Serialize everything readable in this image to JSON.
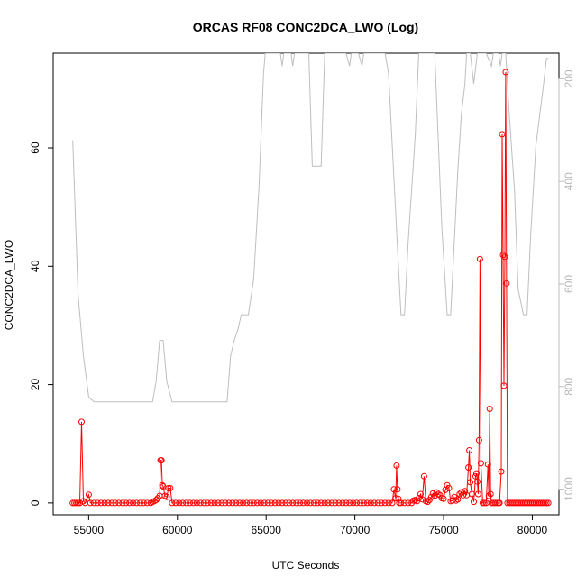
{
  "chart_data": {
    "type": "line",
    "title": "ORCAS RF08 CONC2DCA_LWO (Log)",
    "xlabel": "UTC Seconds",
    "ylabel": "CONC2DCA_LWO",
    "xlim": [
      53000,
      81500
    ],
    "ylim": [
      -2,
      76
    ],
    "x_ticks": [
      55000,
      60000,
      65000,
      70000,
      75000,
      80000
    ],
    "y_ticks": [
      0,
      20,
      40,
      60
    ],
    "right_axis": {
      "ylim": [
        1050,
        150
      ],
      "reversed": true,
      "ticks": [
        200,
        400,
        600,
        800,
        1000
      ],
      "color": "#bebebe"
    },
    "grid": false,
    "series": [
      {
        "color": "#ff0000",
        "marker": "open-circle",
        "points": [
          [
            54100,
            0
          ],
          [
            54200,
            0
          ],
          [
            54300,
            0
          ],
          [
            54400,
            0
          ],
          [
            54500,
            0
          ],
          [
            54600,
            13.7
          ],
          [
            54700,
            0.3
          ],
          [
            54800,
            0
          ],
          [
            55000,
            1.4
          ],
          [
            55100,
            0
          ],
          [
            55300,
            0
          ],
          [
            55500,
            0
          ],
          [
            55700,
            0
          ],
          [
            55900,
            0
          ],
          [
            56100,
            0
          ],
          [
            56300,
            0
          ],
          [
            56500,
            0
          ],
          [
            56700,
            0
          ],
          [
            56900,
            0
          ],
          [
            57100,
            0
          ],
          [
            57300,
            0
          ],
          [
            57500,
            0
          ],
          [
            57700,
            0
          ],
          [
            57900,
            0
          ],
          [
            58100,
            0
          ],
          [
            58300,
            0
          ],
          [
            58500,
            0
          ],
          [
            58600,
            0.2
          ],
          [
            58700,
            0.3
          ],
          [
            58800,
            0.5
          ],
          [
            58900,
            0.8
          ],
          [
            59000,
            1.2
          ],
          [
            59050,
            7.2
          ],
          [
            59100,
            7.2
          ],
          [
            59150,
            3.0
          ],
          [
            59200,
            2.8
          ],
          [
            59300,
            1.2
          ],
          [
            59400,
            1.0
          ],
          [
            59500,
            2.5
          ],
          [
            59600,
            2.5
          ],
          [
            59700,
            0
          ],
          [
            59900,
            0
          ],
          [
            60100,
            0
          ],
          [
            60300,
            0
          ],
          [
            60500,
            0
          ],
          [
            60700,
            0
          ],
          [
            60900,
            0
          ],
          [
            61100,
            0
          ],
          [
            61300,
            0
          ],
          [
            61500,
            0
          ],
          [
            61700,
            0
          ],
          [
            61900,
            0
          ],
          [
            62100,
            0
          ],
          [
            62300,
            0
          ],
          [
            62500,
            0
          ],
          [
            62700,
            0
          ],
          [
            62900,
            0
          ],
          [
            63100,
            0
          ],
          [
            63300,
            0
          ],
          [
            63500,
            0
          ],
          [
            63700,
            0
          ],
          [
            63900,
            0
          ],
          [
            64100,
            0
          ],
          [
            64300,
            0
          ],
          [
            64500,
            0
          ],
          [
            64700,
            0
          ],
          [
            64900,
            0
          ],
          [
            65100,
            0
          ],
          [
            65300,
            0
          ],
          [
            65500,
            0
          ],
          [
            65700,
            0
          ],
          [
            65900,
            0
          ],
          [
            66100,
            0
          ],
          [
            66300,
            0
          ],
          [
            66500,
            0
          ],
          [
            66700,
            0
          ],
          [
            66900,
            0
          ],
          [
            67100,
            0
          ],
          [
            67300,
            0
          ],
          [
            67500,
            0
          ],
          [
            67700,
            0
          ],
          [
            67900,
            0
          ],
          [
            68100,
            0
          ],
          [
            68300,
            0
          ],
          [
            68500,
            0
          ],
          [
            68700,
            0
          ],
          [
            68900,
            0
          ],
          [
            69100,
            0
          ],
          [
            69300,
            0
          ],
          [
            69500,
            0
          ],
          [
            69700,
            0
          ],
          [
            69900,
            0
          ],
          [
            70100,
            0
          ],
          [
            70300,
            0
          ],
          [
            70500,
            0
          ],
          [
            70700,
            0
          ],
          [
            70900,
            0
          ],
          [
            71100,
            0
          ],
          [
            71300,
            0
          ],
          [
            71500,
            0
          ],
          [
            71700,
            0
          ],
          [
            71900,
            0
          ],
          [
            72100,
            0
          ],
          [
            72200,
            2.3
          ],
          [
            72300,
            0.8
          ],
          [
            72350,
            6.3
          ],
          [
            72400,
            2.3
          ],
          [
            72450,
            0.7
          ],
          [
            72500,
            0
          ],
          [
            72600,
            0
          ],
          [
            72800,
            0
          ],
          [
            73000,
            0
          ],
          [
            73200,
            0
          ],
          [
            73300,
            0.4
          ],
          [
            73400,
            0.5
          ],
          [
            73500,
            0.3
          ],
          [
            73600,
            0.8
          ],
          [
            73700,
            1.5
          ],
          [
            73800,
            0.6
          ],
          [
            73900,
            4.5
          ],
          [
            74000,
            0.3
          ],
          [
            74100,
            0.2
          ],
          [
            74200,
            0.5
          ],
          [
            74300,
            1.0
          ],
          [
            74400,
            1.6
          ],
          [
            74500,
            1.2
          ],
          [
            74600,
            1.8
          ],
          [
            74700,
            1.5
          ],
          [
            74800,
            1.3
          ],
          [
            74900,
            0.8
          ],
          [
            75000,
            0.7
          ],
          [
            75100,
            2.2
          ],
          [
            75200,
            3.0
          ],
          [
            75300,
            2.5
          ],
          [
            75400,
            0.3
          ],
          [
            75500,
            0.4
          ],
          [
            75600,
            1.0
          ],
          [
            75700,
            0.4
          ],
          [
            75800,
            0.6
          ],
          [
            75900,
            1.5
          ],
          [
            76000,
            1.8
          ],
          [
            76100,
            1.3
          ],
          [
            76200,
            2.0
          ],
          [
            76300,
            1.3
          ],
          [
            76400,
            6.0
          ],
          [
            76450,
            8.9
          ],
          [
            76500,
            3.5
          ],
          [
            76600,
            1.5
          ],
          [
            76700,
            0.2
          ],
          [
            76800,
            4.5
          ],
          [
            76850,
            5.0
          ],
          [
            76900,
            3.6
          ],
          [
            76950,
            1.5
          ],
          [
            77000,
            10.6
          ],
          [
            77050,
            41.2
          ],
          [
            77100,
            6.7
          ],
          [
            77200,
            0
          ],
          [
            77300,
            0
          ],
          [
            77400,
            0
          ],
          [
            77500,
            6.5
          ],
          [
            77550,
            1.2
          ],
          [
            77600,
            15.9
          ],
          [
            77650,
            1.5
          ],
          [
            77700,
            0
          ],
          [
            77800,
            0
          ],
          [
            77900,
            0
          ],
          [
            78000,
            0
          ],
          [
            78100,
            0
          ],
          [
            78150,
            0
          ],
          [
            78250,
            5.3
          ],
          [
            78300,
            62.3
          ],
          [
            78350,
            41.9
          ],
          [
            78400,
            19.8
          ],
          [
            78450,
            41.6
          ],
          [
            78500,
            72.8
          ],
          [
            78550,
            37.1
          ],
          [
            78600,
            0
          ],
          [
            78700,
            0
          ],
          [
            78800,
            0
          ],
          [
            78900,
            0
          ],
          [
            79000,
            0
          ],
          [
            79100,
            0
          ],
          [
            79200,
            0
          ],
          [
            79300,
            0
          ],
          [
            79400,
            0
          ],
          [
            79500,
            0
          ],
          [
            79600,
            0
          ],
          [
            79700,
            0
          ],
          [
            79800,
            0
          ],
          [
            79900,
            0
          ],
          [
            80000,
            0
          ],
          [
            80100,
            0
          ],
          [
            80200,
            0
          ],
          [
            80300,
            0
          ],
          [
            80400,
            0
          ],
          [
            80500,
            0
          ],
          [
            80600,
            0
          ],
          [
            80700,
            0
          ],
          [
            80800,
            0
          ],
          [
            80900,
            0
          ]
        ]
      },
      {
        "color": "#bebebe",
        "axis": "right",
        "marker": "none",
        "points": [
          [
            54100,
            320
          ],
          [
            54400,
            620
          ],
          [
            54700,
            740
          ],
          [
            55000,
            820
          ],
          [
            55300,
            830
          ],
          [
            56000,
            830
          ],
          [
            57000,
            830
          ],
          [
            58000,
            830
          ],
          [
            58600,
            830
          ],
          [
            58800,
            790
          ],
          [
            59000,
            710
          ],
          [
            59200,
            710
          ],
          [
            59400,
            790
          ],
          [
            59700,
            830
          ],
          [
            60000,
            830
          ],
          [
            61000,
            830
          ],
          [
            62000,
            830
          ],
          [
            62800,
            830
          ],
          [
            63000,
            740
          ],
          [
            63200,
            710
          ],
          [
            63400,
            690
          ],
          [
            63600,
            660
          ],
          [
            64000,
            660
          ],
          [
            64300,
            590
          ],
          [
            64600,
            410
          ],
          [
            64850,
            190
          ],
          [
            64950,
            150
          ],
          [
            65000,
            150
          ],
          [
            65500,
            150
          ],
          [
            65800,
            150
          ],
          [
            65900,
            175
          ],
          [
            66000,
            150
          ],
          [
            66200,
            150
          ],
          [
            66400,
            150
          ],
          [
            66500,
            175
          ],
          [
            66600,
            150
          ],
          [
            67000,
            150
          ],
          [
            67400,
            150
          ],
          [
            67600,
            370
          ],
          [
            67800,
            370
          ],
          [
            68100,
            370
          ],
          [
            68300,
            150
          ],
          [
            69000,
            150
          ],
          [
            69500,
            150
          ],
          [
            69700,
            175
          ],
          [
            69800,
            150
          ],
          [
            70200,
            150
          ],
          [
            70400,
            175
          ],
          [
            70500,
            150
          ],
          [
            71000,
            150
          ],
          [
            71700,
            150
          ],
          [
            71900,
            190
          ],
          [
            72400,
            530
          ],
          [
            72600,
            660
          ],
          [
            72800,
            660
          ],
          [
            73000,
            520
          ],
          [
            73400,
            310
          ],
          [
            73600,
            150
          ],
          [
            74000,
            150
          ],
          [
            74500,
            150
          ],
          [
            74900,
            490
          ],
          [
            75200,
            660
          ],
          [
            75400,
            660
          ],
          [
            75800,
            380
          ],
          [
            76000,
            270
          ],
          [
            76200,
            210
          ],
          [
            76300,
            150
          ],
          [
            76500,
            150
          ],
          [
            76700,
            210
          ],
          [
            76900,
            150
          ],
          [
            77200,
            150
          ],
          [
            77400,
            150
          ],
          [
            77700,
            175
          ],
          [
            77800,
            150
          ],
          [
            78100,
            150
          ],
          [
            78200,
            175
          ],
          [
            78300,
            150
          ],
          [
            78500,
            150
          ],
          [
            78700,
            270
          ],
          [
            79000,
            420
          ],
          [
            79200,
            610
          ],
          [
            79500,
            660
          ],
          [
            79700,
            660
          ],
          [
            79900,
            510
          ],
          [
            80200,
            330
          ],
          [
            80600,
            220
          ],
          [
            80800,
            160
          ],
          [
            80900,
            160
          ]
        ]
      }
    ]
  }
}
